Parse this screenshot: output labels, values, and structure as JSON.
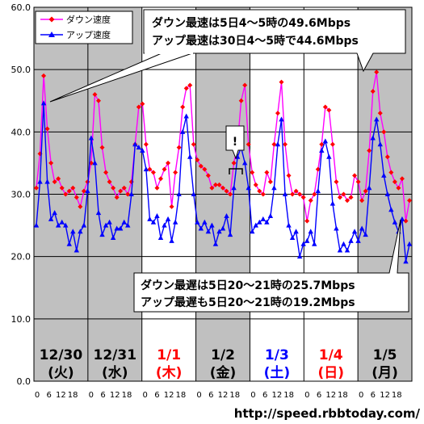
{
  "chart_data": {
    "type": "line",
    "ylim": [
      0,
      60
    ],
    "yticks": [
      "0.0",
      "10.0",
      "20.0",
      "30.0",
      "40.0",
      "50.0",
      "60.0"
    ],
    "hour_ticks": [
      "0",
      "6",
      "12",
      "18"
    ],
    "days": [
      {
        "date": "12/30",
        "weekday": "(火)",
        "color": "#000000",
        "shaded": true
      },
      {
        "date": "12/31",
        "weekday": "(水)",
        "color": "#000000",
        "shaded": true
      },
      {
        "date": "1/1",
        "weekday": "(木)",
        "color": "#ff0000",
        "shaded": false
      },
      {
        "date": "1/2",
        "weekday": "(金)",
        "color": "#000000",
        "shaded": true
      },
      {
        "date": "1/3",
        "weekday": "(土)",
        "color": "#0000ff",
        "shaded": false
      },
      {
        "date": "1/4",
        "weekday": "(日)",
        "color": "#ff0000",
        "shaded": false
      },
      {
        "date": "1/5",
        "weekday": "(月)",
        "color": "#000000",
        "shaded": true
      }
    ],
    "series": [
      {
        "name": "ダウン速度",
        "color": "#ff00ff",
        "values": [
          31.0,
          36.5,
          49.0,
          40.5,
          35.0,
          32.0,
          32.5,
          31.0,
          30.0,
          30.5,
          31.0,
          29.5,
          28.0,
          30.5,
          32.0,
          35.0,
          46.0,
          45.0,
          37.5,
          33.5,
          32.0,
          31.0,
          29.5,
          30.5,
          31.0,
          30.0,
          32.0,
          38.0,
          44.0,
          44.5,
          38.0,
          34.0,
          33.5,
          31.0,
          32.5,
          34.0,
          35.0,
          28.0,
          33.5,
          37.5,
          44.0,
          47.0,
          47.5,
          38.0,
          35.5,
          34.5,
          34.0,
          33.0,
          31.0,
          31.5,
          31.5,
          31.0,
          30.5,
          30.0,
          35.0,
          38.0,
          45.0,
          47.5,
          38.0,
          33.5,
          31.5,
          30.5,
          30.0,
          33.5,
          32.0,
          38.0,
          43.0,
          48.0,
          38.0,
          33.0,
          30.0,
          30.5,
          30.0,
          29.5,
          25.7,
          29.0,
          30.0,
          34.0,
          38.0,
          44.0,
          43.5,
          38.0,
          32.0,
          29.5,
          30.0,
          29.0,
          29.5,
          33.0,
          32.0,
          29.0,
          30.5,
          37.0,
          46.5,
          49.6,
          43.0,
          40.0,
          36.0,
          33.5,
          32.0,
          31.0,
          32.5,
          25.7,
          29.0
        ]
      },
      {
        "name": "アップ速度",
        "color": "#0000ff",
        "values": [
          25.0,
          32.0,
          44.6,
          32.0,
          26.0,
          27.0,
          25.0,
          25.5,
          25.0,
          22.0,
          24.0,
          21.0,
          24.0,
          25.0,
          30.5,
          39.0,
          35.0,
          27.0,
          23.5,
          25.0,
          25.5,
          23.0,
          24.5,
          24.5,
          25.5,
          25.0,
          30.0,
          38.0,
          37.5,
          37.0,
          34.0,
          26.0,
          25.5,
          26.5,
          23.0,
          25.0,
          26.0,
          22.5,
          25.5,
          30.0,
          40.0,
          42.5,
          36.0,
          30.0,
          25.5,
          24.5,
          25.5,
          24.0,
          25.0,
          22.0,
          24.0,
          24.5,
          26.5,
          23.5,
          31.0,
          36.0,
          37.5,
          35.0,
          31.0,
          24.0,
          25.0,
          25.5,
          26.0,
          25.5,
          26.5,
          31.0,
          38.0,
          42.0,
          30.0,
          25.0,
          23.0,
          24.0,
          20.0,
          22.0,
          22.5,
          24.0,
          22.0,
          30.5,
          37.0,
          38.5,
          36.0,
          28.5,
          24.5,
          21.0,
          22.0,
          21.0,
          22.5,
          24.0,
          22.5,
          24.5,
          23.5,
          31.0,
          39.0,
          42.0,
          38.0,
          33.0,
          30.0,
          27.5,
          25.5,
          24.0,
          26.0,
          19.2,
          22.0
        ]
      }
    ],
    "annotations": {
      "top_line1": "ダウン最速は5日4～5時の49.6Mbps",
      "top_line2": "アップ最速は30日4～5時で44.6Mbps",
      "bottom_line1": "ダウン最遅は5日20～21時の25.7Mbps",
      "bottom_line2": "アップ最遅も5日20～21時の19.2Mbps",
      "exclaim": "!"
    }
  },
  "footer": {
    "url": "http://speed.rbbtoday.com/"
  }
}
